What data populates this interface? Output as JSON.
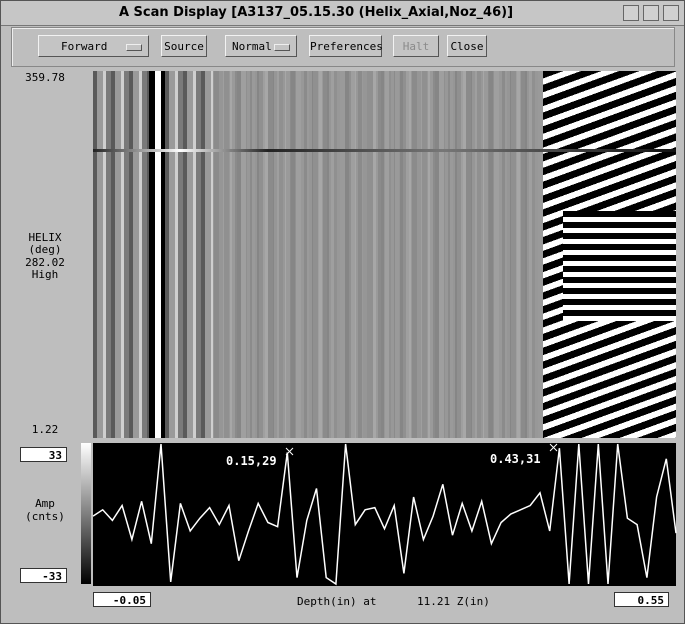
{
  "window": {
    "title": "A Scan Display [A3137_05.15.30 (Helix_Axial,Noz_46)]"
  },
  "toolbar": {
    "buttons": [
      "Forward",
      "Source",
      "Normal",
      "Preferences",
      "Halt",
      "Close"
    ]
  },
  "scan": {
    "helix_max": 359.78,
    "axis_label": [
      "HELIX",
      "(deg)"
    ],
    "cursor_value": 282.02,
    "gain": "High",
    "helix_min": 1.22
  },
  "ascan": {
    "amp_max": 33,
    "amp_min": -33,
    "amp_label": [
      "Amp",
      "(cnts)"
    ],
    "depth_start": -0.05,
    "depth_end": 0.55,
    "depth_label": "Depth(in) at",
    "z_value": "11.21 Z(in)",
    "cursors": [
      "0.15,29",
      "0.43,31"
    ],
    "x": [
      -0.05,
      -0.04,
      -0.03,
      -0.02,
      -0.01,
      0.0,
      0.01,
      0.02,
      0.03,
      0.04,
      0.05,
      0.06,
      0.07,
      0.08,
      0.09,
      0.1,
      0.11,
      0.12,
      0.13,
      0.14,
      0.15,
      0.16,
      0.17,
      0.18,
      0.19,
      0.2,
      0.21,
      0.22,
      0.23,
      0.24,
      0.25,
      0.26,
      0.27,
      0.28,
      0.29,
      0.3,
      0.31,
      0.32,
      0.33,
      0.34,
      0.35,
      0.36,
      0.37,
      0.38,
      0.39,
      0.4,
      0.41,
      0.42,
      0.43,
      0.44,
      0.45,
      0.46,
      0.47,
      0.48,
      0.49,
      0.5,
      0.51,
      0.52,
      0.53,
      0.54,
      0.55
    ],
    "values": [
      -1,
      2,
      -3,
      4,
      -12,
      6,
      -14,
      33,
      -32,
      5,
      -8,
      -2,
      3,
      -5,
      4,
      -22,
      -8,
      5,
      -4,
      -6,
      29,
      -30,
      -3,
      12,
      -30,
      -33,
      33,
      -5,
      2,
      3,
      -7,
      4,
      -28,
      8,
      -12,
      -1,
      14,
      -10,
      5,
      -8,
      6,
      -14,
      -4,
      0,
      2,
      4,
      10,
      -8,
      31,
      -33,
      33,
      -33,
      33,
      -33,
      33,
      -2,
      -5,
      -30,
      8,
      26,
      -9
    ]
  }
}
